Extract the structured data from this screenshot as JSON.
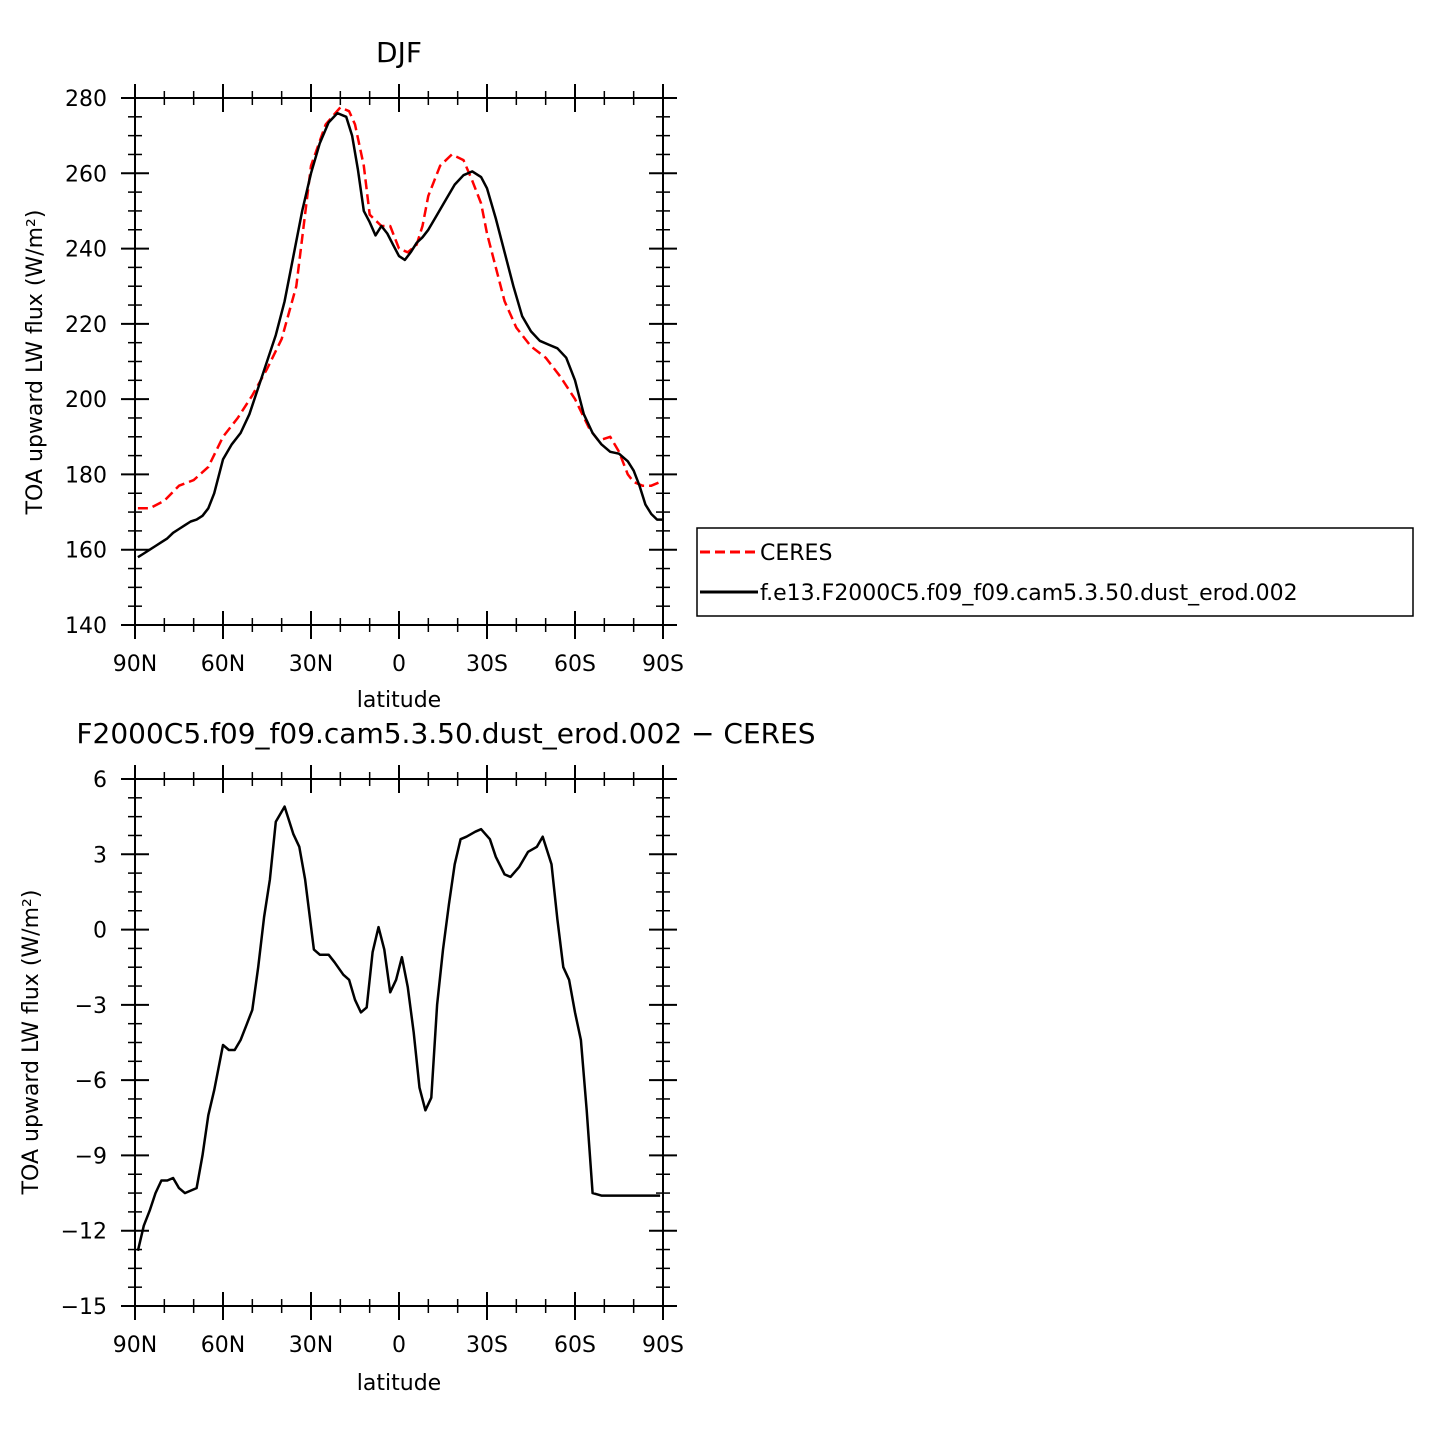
{
  "chart_data": [
    {
      "type": "line",
      "title": "DJF",
      "xlabel": "latitude",
      "ylabel": "TOA upward LW flux (W/m²)",
      "ylim": [
        140,
        280
      ],
      "xlim": [
        -90,
        90
      ],
      "yticks": [
        140,
        160,
        180,
        200,
        220,
        240,
        260,
        280
      ],
      "xticks": [
        {
          "value": -90,
          "label": "90N"
        },
        {
          "value": -60,
          "label": "60N"
        },
        {
          "value": -30,
          "label": "30N"
        },
        {
          "value": 0,
          "label": "0"
        },
        {
          "value": 30,
          "label": "30S"
        },
        {
          "value": 60,
          "label": "60S"
        },
        {
          "value": 90,
          "label": "90S"
        }
      ],
      "x_note": "x values: negative = northern latitudes (90N at -90), positive = southern latitudes",
      "series": [
        {
          "name": "CERES",
          "color": "#ff0000",
          "dash": "dashed",
          "x": [
            -89,
            -85,
            -80,
            -75,
            -70,
            -65,
            -60,
            -55,
            -50,
            -45,
            -40,
            -35,
            -30,
            -25,
            -20,
            -17,
            -15,
            -12,
            -10,
            -6,
            -3,
            0,
            3,
            6,
            8,
            10,
            14,
            18,
            22,
            25,
            28,
            30,
            33,
            36,
            40,
            45,
            50,
            55,
            60,
            65,
            68,
            72,
            75,
            78,
            80,
            83,
            86,
            89
          ],
          "values": [
            171,
            171,
            173,
            177,
            178.5,
            182,
            190,
            195,
            201,
            208,
            216,
            230,
            262,
            273,
            277.5,
            276.5,
            273,
            262,
            249,
            246,
            246,
            240,
            239,
            241,
            246,
            254,
            262,
            265,
            263.5,
            258,
            252,
            244,
            235,
            226,
            219,
            214,
            211,
            206,
            200,
            192,
            189,
            190,
            186,
            180,
            178,
            177,
            177,
            178
          ]
        },
        {
          "name": "f.e13.F2000C5.f09_f09.cam5.3.50.dust_erod.002",
          "color": "#000000",
          "dash": "solid",
          "x": [
            -89,
            -87,
            -85,
            -83,
            -81,
            -79,
            -77,
            -75,
            -73,
            -71,
            -69,
            -67,
            -65,
            -63,
            -60,
            -57,
            -54,
            -51,
            -48,
            -45,
            -42,
            -39,
            -36,
            -33,
            -30,
            -27,
            -24,
            -21,
            -18,
            -16,
            -14,
            -12,
            -10,
            -8,
            -6,
            -4,
            -2,
            0,
            2,
            4,
            6,
            8,
            10,
            13,
            16,
            19,
            22,
            25,
            28,
            30,
            33,
            36,
            39,
            42,
            45,
            48,
            51,
            54,
            57,
            60,
            63,
            66,
            69,
            72,
            75,
            78,
            80,
            82,
            84,
            86,
            88,
            90
          ],
          "values": [
            158,
            159,
            160,
            161,
            162,
            163,
            164.5,
            165.5,
            166.5,
            167.5,
            168,
            169,
            171,
            175,
            184,
            188,
            191,
            196,
            203,
            210,
            217,
            226,
            238,
            250,
            260,
            268,
            273.5,
            276,
            275,
            270,
            261,
            250,
            247,
            243.5,
            246,
            244,
            241,
            238,
            237,
            239,
            241.5,
            243,
            245,
            249,
            253,
            257,
            259.5,
            260.5,
            259,
            256,
            248,
            239,
            230,
            222,
            218,
            215.5,
            214.5,
            213.5,
            211,
            205,
            196,
            191,
            188,
            186,
            185.5,
            183.5,
            181,
            177,
            172,
            169.5,
            168,
            168
          ]
        }
      ],
      "legend": {
        "placement": "right",
        "entries": [
          "CERES",
          "f.e13.F2000C5.f09_f09.cam5.3.50.dust_erod.002"
        ]
      }
    },
    {
      "type": "line",
      "title": "F2000C5.f09_f09.cam5.3.50.dust_erod.002 − CERES",
      "xlabel": "latitude",
      "ylabel": "TOA upward LW flux (W/m²)",
      "ylim": [
        -15,
        6
      ],
      "xlim": [
        -90,
        90
      ],
      "yticks": [
        -15,
        -12,
        -9,
        -6,
        -3,
        0,
        3,
        6
      ],
      "xticks": [
        {
          "value": -90,
          "label": "90N"
        },
        {
          "value": -60,
          "label": "60N"
        },
        {
          "value": -30,
          "label": "30N"
        },
        {
          "value": 0,
          "label": "0"
        },
        {
          "value": 30,
          "label": "30S"
        },
        {
          "value": 60,
          "label": "60S"
        },
        {
          "value": 90,
          "label": "90S"
        }
      ],
      "series": [
        {
          "name": "",
          "color": "#000000",
          "dash": "solid",
          "x": [
            -89,
            -87,
            -85,
            -83,
            -81,
            -79,
            -77,
            -75,
            -73,
            -71,
            -69,
            -67,
            -65,
            -63,
            -60,
            -58,
            -56,
            -54,
            -52,
            -50,
            -48,
            -46,
            -44,
            -42,
            -39,
            -36,
            -34,
            -32,
            -29,
            -27,
            -24,
            -22,
            -19,
            -17,
            -15,
            -13,
            -11,
            -9,
            -7,
            -5,
            -3,
            -1,
            1,
            3,
            5,
            7,
            9,
            11,
            13,
            15,
            17,
            19,
            21,
            23,
            26,
            28,
            31,
            33,
            36,
            38,
            41,
            44,
            47,
            49,
            52,
            54,
            56,
            58,
            60,
            62,
            64,
            66,
            69,
            72,
            75,
            77,
            79,
            81,
            83,
            85,
            87,
            89
          ],
          "values": [
            -12.8,
            -11.8,
            -11.2,
            -10.5,
            -10,
            -10,
            -9.9,
            -10.3,
            -10.5,
            -10.4,
            -10.3,
            -9,
            -7.4,
            -6.4,
            -4.6,
            -4.8,
            -4.8,
            -4.4,
            -3.8,
            -3.2,
            -1.5,
            0.5,
            2,
            4.3,
            4.9,
            3.8,
            3.3,
            2,
            -0.8,
            -1,
            -1,
            -1.3,
            -1.8,
            -2,
            -2.8,
            -3.3,
            -3.1,
            -0.9,
            0.1,
            -0.8,
            -2.5,
            -2,
            -1.1,
            -2.3,
            -4.1,
            -6.3,
            -7.2,
            -6.7,
            -3,
            -0.8,
            1,
            2.6,
            3.6,
            3.7,
            3.9,
            4,
            3.6,
            2.9,
            2.2,
            2.1,
            2.5,
            3.1,
            3.3,
            3.7,
            2.6,
            0.4,
            -1.5,
            -2,
            -3.3,
            -4.4,
            -7.2,
            -10.5,
            -10.6,
            -10.6,
            -10.6,
            -10.6,
            -10.6,
            -10.6,
            -10.6,
            -10.6,
            -10.6,
            -10.6
          ]
        }
      ]
    }
  ]
}
